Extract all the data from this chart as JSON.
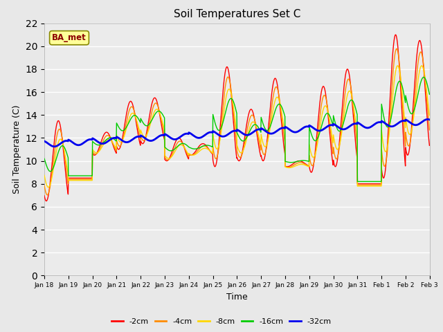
{
  "title": "Soil Temperatures Set C",
  "xlabel": "Time",
  "ylabel": "Soil Temperature (C)",
  "ylim": [
    0,
    22
  ],
  "yticks": [
    0,
    2,
    4,
    6,
    8,
    10,
    12,
    14,
    16,
    18,
    20,
    22
  ],
  "annotation_text": "BA_met",
  "annotation_color": "#8B0000",
  "annotation_bg": "#FFFF99",
  "colors": {
    "-2cm": "#FF0000",
    "-4cm": "#FF8C00",
    "-8cm": "#FFD700",
    "-16cm": "#00CC00",
    "-32cm": "#0000EE"
  },
  "background_color": "#E8E8E8",
  "plot_bg": "#EBEBEB",
  "line_width": 1.0,
  "n_days": 16,
  "day_peaks_2cm": [
    13.5,
    8.5,
    12.5,
    15.2,
    15.5,
    12.0,
    11.5,
    18.2,
    14.5,
    17.2,
    10.0,
    16.5,
    18.0,
    8.0,
    21.0,
    20.5
  ],
  "day_mins_2cm": [
    6.5,
    8.5,
    10.5,
    11.0,
    11.5,
    10.0,
    10.5,
    9.5,
    10.0,
    10.0,
    9.5,
    9.0,
    9.5,
    8.0,
    8.5,
    10.5
  ]
}
